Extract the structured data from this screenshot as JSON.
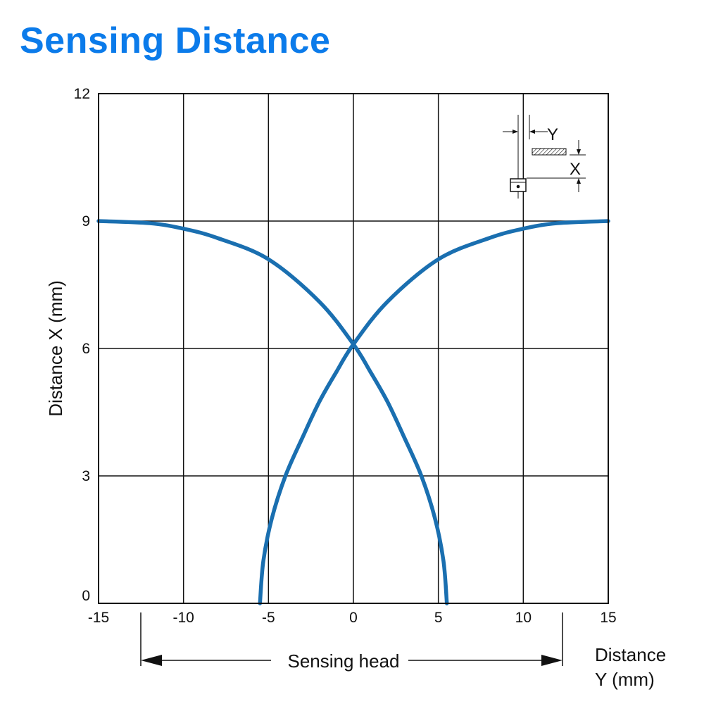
{
  "title": "Sensing Distance",
  "colors": {
    "title": "#0b7bea",
    "curve": "#1a6fb0",
    "grid": "#111111"
  },
  "chart_data": {
    "type": "line",
    "xlabel_line1": "Distance",
    "xlabel_line2": "Y (mm)",
    "ylabel": "Distance X (mm)",
    "xlim": [
      -15,
      15
    ],
    "ylim": [
      0,
      12
    ],
    "xticks": [
      "-15",
      "-10",
      "-5",
      "0",
      "5",
      "10",
      "15"
    ],
    "yticks": [
      "0",
      "3",
      "6",
      "9",
      "12"
    ],
    "grid": true,
    "annotation": "Sensing head",
    "inset_labels": {
      "y": "Y",
      "x": "X"
    },
    "series": [
      {
        "x": [
          -5.5,
          -5.3,
          -4.8,
          -4.0,
          -3.0,
          -2.0,
          -1.0,
          0.0,
          2.0,
          5.0,
          8.0,
          10.0,
          12.0,
          15.0
        ],
        "y": [
          0.0,
          1.0,
          2.0,
          3.0,
          3.9,
          4.75,
          5.45,
          6.1,
          7.1,
          8.1,
          8.6,
          8.82,
          8.95,
          9.0
        ]
      },
      {
        "x": [
          5.5,
          5.3,
          4.8,
          4.0,
          3.0,
          2.0,
          1.0,
          0.0,
          -2.0,
          -5.0,
          -8.0,
          -10.0,
          -12.0,
          -15.0
        ],
        "y": [
          0.0,
          1.0,
          2.0,
          3.0,
          3.9,
          4.75,
          5.45,
          6.1,
          7.1,
          8.1,
          8.6,
          8.82,
          8.95,
          9.0
        ]
      }
    ]
  }
}
